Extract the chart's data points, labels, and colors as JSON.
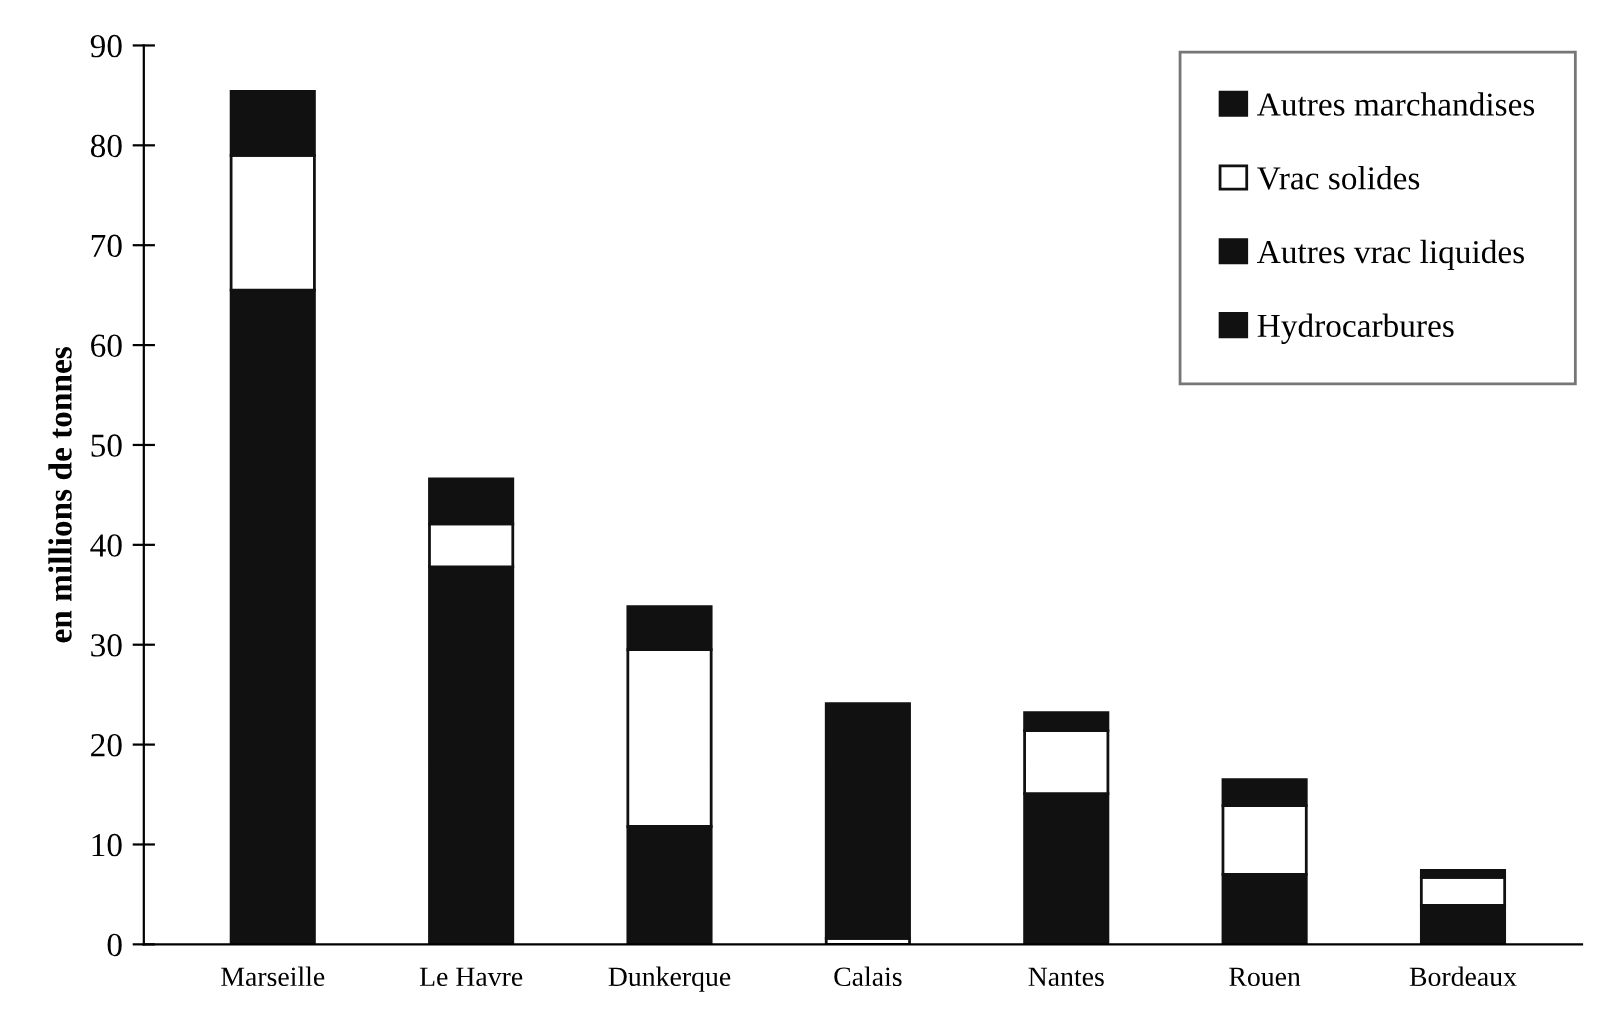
{
  "chart_data": {
    "type": "bar",
    "stacked": true,
    "ylabel": "en millions de tonnes",
    "categories": [
      "Marseille",
      "Le Havre",
      "Dunkerque",
      "Calais",
      "Nantes",
      "Rouen",
      "Bordeaux"
    ],
    "series": [
      {
        "name": "Hydrocarbures",
        "color": "#111111",
        "values": [
          65.5,
          37.8,
          11.8,
          null,
          15.1,
          7.0,
          3.9
        ]
      },
      {
        "name": "Autres vrac liquides",
        "color": "#111111",
        "values": [
          null,
          null,
          null,
          null,
          null,
          null,
          null
        ]
      },
      {
        "name": "Vrac solides",
        "color": "#ffffff",
        "values": [
          13.5,
          4.3,
          17.7,
          0.6,
          6.3,
          6.9,
          2.8
        ]
      },
      {
        "name": "Autres marchandises",
        "color": "#111111",
        "values": [
          6.4,
          4.5,
          4.3,
          23.5,
          1.8,
          2.6,
          0.7
        ]
      }
    ],
    "ylim": [
      0,
      90
    ],
    "yticks": [
      0,
      10,
      20,
      30,
      40,
      50,
      60,
      70,
      80,
      90
    ],
    "grid": false,
    "legend": "top right"
  }
}
